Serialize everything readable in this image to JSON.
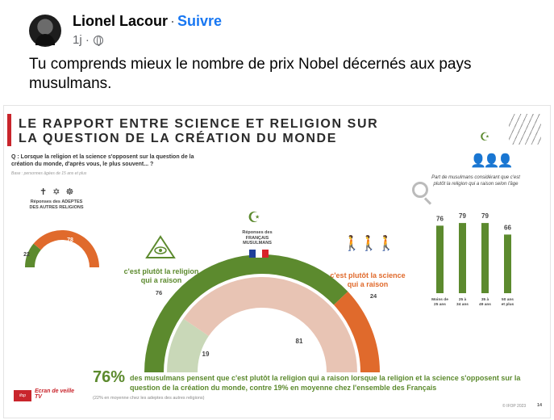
{
  "post": {
    "author": "Lionel Lacour",
    "separator": "·",
    "follow_label": "Suivre",
    "time": "1j ·",
    "text": "Tu comprends mieux le nombre de prix Nobel décernés aux pays musulmans."
  },
  "infographic": {
    "title_line1": "LE RAPPORT ENTRE SCIENCE ET RELIGION SUR",
    "title_line2": "LA QUESTION DE LA CRÉATION DU MONDE",
    "question": "Q : Lorsque la religion et la science s'opposent sur la question de la création du monde, d'après vous, le plus souvent... ?",
    "base": "Base : personnes âgées de 15 ans et plus",
    "other_religions_glyphs": "✝ ✡ ☸",
    "other_religions_label": "Réponses des ADEPTES DES AUTRES RELIGIONS",
    "muslim_glyph": "☪",
    "muslim_label_line1": "Réponses des",
    "muslim_label_line2": "FRANÇAIS MUSULMANS",
    "religion_label_line1": "c'est plutôt la religion",
    "religion_label_line2": "qui a raison",
    "science_label_line1": "c'est plutôt la science",
    "science_label_line2": "qui a raison",
    "bar_caption": "Part de musulmans considérant que c'est plutôt la religion qui a raison selon l'âge",
    "bottom_pct": "76%",
    "bottom_text": "des musulmans pensent que c'est plutôt la religion qui a raison lorsque la religion et la science s'opposent sur la question de la création du monde, contre 19% en moyenne chez l'ensemble des Français",
    "bottom_sub": "(22% en moyenne chez les adeptes des autres religions)",
    "logo1": "ifop",
    "logo2": "Ecran de veille TV",
    "copyright": "© IFOP 2023",
    "page_number": "14"
  },
  "chart_data": [
    {
      "type": "pie",
      "title": "Réponses des ADEPTES DES AUTRES RELIGIONS",
      "categories": [
        "c'est plutôt la religion qui a raison",
        "c'est plutôt la science qui a raison"
      ],
      "values": [
        22,
        78
      ],
      "colors": [
        "#5c8a2e",
        "#e06a2c"
      ]
    },
    {
      "type": "pie",
      "title": "Réponses des FRANÇAIS MUSULMANS",
      "categories": [
        "c'est plutôt la religion qui a raison",
        "c'est plutôt la science qui a raison"
      ],
      "values": [
        76,
        24
      ],
      "colors": [
        "#5c8a2e",
        "#e06a2c"
      ]
    },
    {
      "type": "pie",
      "title": "",
      "categories": [
        "19",
        "81"
      ],
      "values": [
        19,
        81
      ],
      "colors": [
        "#c9d8b8",
        "#e8c4b4"
      ]
    },
    {
      "type": "bar",
      "title": "Part de musulmans considérant que c'est plutôt la religion qui a raison selon l'âge",
      "categories": [
        "Moins de 25 ans",
        "25 à 34 ans",
        "35 à 49 ans",
        "50 ans et plus"
      ],
      "values": [
        76,
        79,
        79,
        66
      ],
      "ylim": [
        0,
        100
      ],
      "color": "#5c8a2e"
    }
  ]
}
